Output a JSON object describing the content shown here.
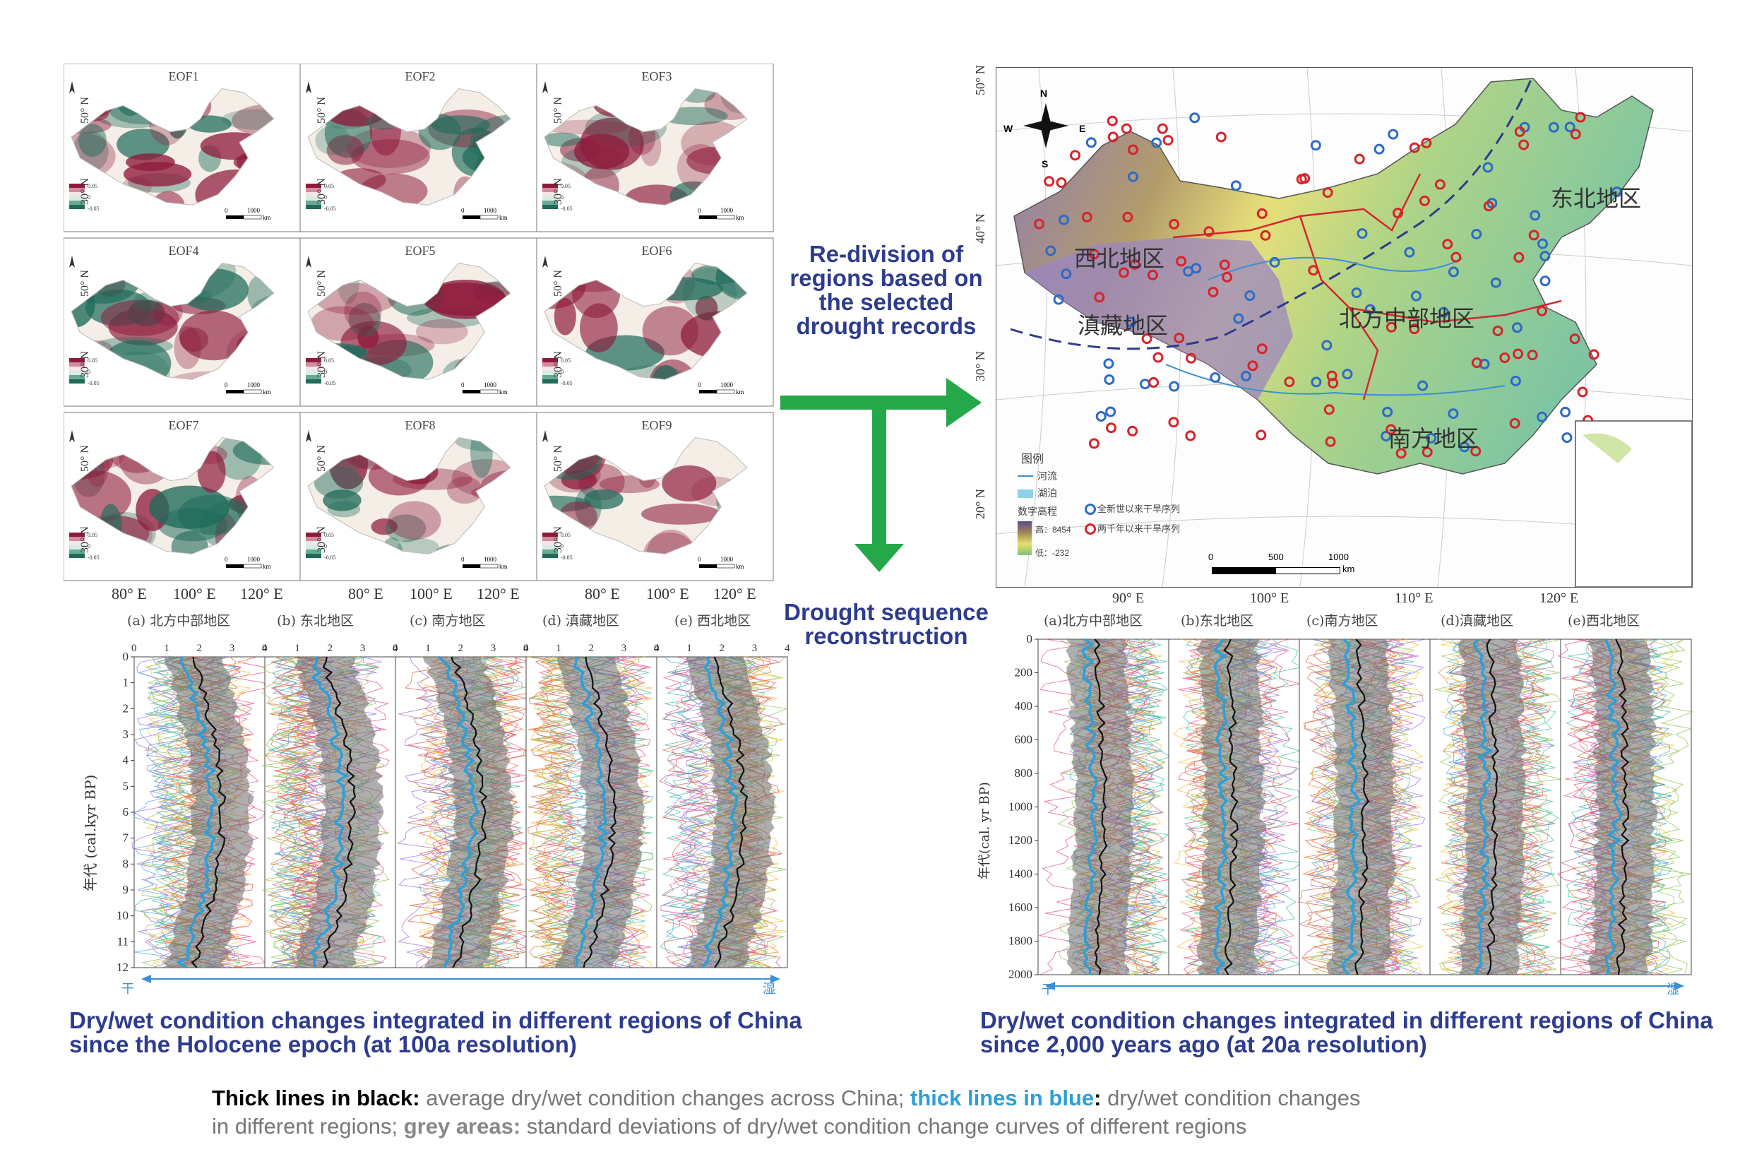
{
  "eof_maps": {
    "titles": [
      "EOF1",
      "EOF2",
      "EOF3",
      "EOF4",
      "EOF5",
      "EOF6",
      "EOF7",
      "EOF8",
      "EOF9"
    ],
    "lat_labels": [
      "50° N",
      "30° N"
    ],
    "lon_labels": [
      "80° E",
      "100° E",
      "120° E"
    ],
    "scale_values": [
      "0.05",
      "0",
      "-0.05"
    ],
    "scale_bar": [
      "0",
      "1000",
      "km"
    ],
    "colors": {
      "wet": "#1f6b5a",
      "dry": "#8e1b3c",
      "neutral": "#f4eee6"
    }
  },
  "flow": {
    "redivision_text": "Re-division of regions based on the selected drought records",
    "reconstruction_text": "Drought sequence reconstruction",
    "arrow_color": "#24a84a"
  },
  "region_map": {
    "lat_labels": [
      "50° N",
      "40° N",
      "30° N",
      "20° N"
    ],
    "lon_labels": [
      "90° E",
      "100° E",
      "110° E",
      "120° E"
    ],
    "compass": {
      "n": "N",
      "s": "S",
      "e": "E",
      "w": "W"
    },
    "regions": [
      "西北地区",
      "东北地区",
      "滇藏地区",
      "北方中部地区",
      "南方地区"
    ],
    "legend_title": "图例",
    "legend_items": [
      "河流",
      "湖泊",
      "全新世以来干旱序列",
      "两千年以来干旱序列"
    ],
    "elevation_title": "数字高程",
    "elevation_high": "高：8454",
    "elevation_low": "低：-232",
    "scale": [
      "0",
      "500",
      "1000",
      "km"
    ]
  },
  "holocene_panel": {
    "headers": [
      "(a) 北方中部地区",
      "(b) 东北地区",
      "(c) 南方地区",
      "(d) 滇藏地区",
      "(e) 西北地区"
    ],
    "x_ticks": [
      "0",
      "1",
      "2",
      "3",
      "4"
    ],
    "y_ticks": [
      "0",
      "1",
      "2",
      "3",
      "4",
      "5",
      "6",
      "7",
      "8",
      "9",
      "10",
      "11",
      "12"
    ],
    "y_label": "年代 (cal.kyr BP)",
    "dry_label": "干",
    "wet_label": "湿",
    "caption": "Dry/wet condition changes integrated in different regions of China since the Holocene epoch (at 100a resolution)"
  },
  "twok_panel": {
    "headers": [
      "(a)北方中部地区",
      "(b)东北地区",
      "(c)南方地区",
      "(d)滇藏地区",
      "(e)西北地区"
    ],
    "y_ticks": [
      "0",
      "200",
      "400",
      "600",
      "800",
      "1000",
      "1200",
      "1400",
      "1600",
      "1800",
      "2000"
    ],
    "y_label": "年代(cal. yr BP)",
    "dry_label": "干",
    "wet_label": "湿",
    "caption": "Dry/wet condition changes integrated in different regions of China since 2,000 years ago (at 20a resolution)"
  },
  "legend": {
    "black_key": "Thick lines in black:",
    "black_desc": " average dry/wet condition changes across China; ",
    "blue_key": "thick lines in blue",
    "blue_colon": ":",
    "blue_desc": " dry/wet condition changes",
    "line2_a": "in different regions; ",
    "grey_key": "grey areas:",
    "grey_desc": " standard deviations of dry/wet condition change curves of different regions"
  }
}
